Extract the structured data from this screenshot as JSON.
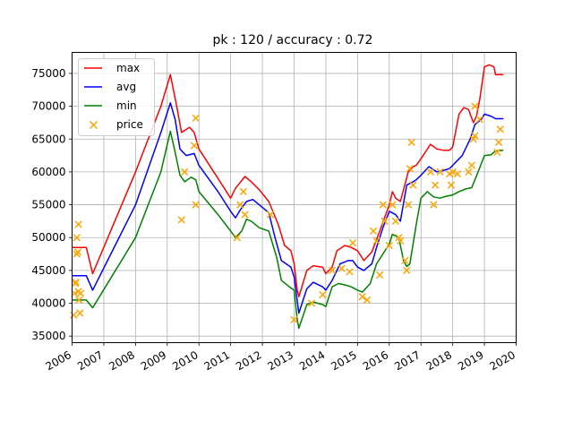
{
  "chart_data": {
    "type": "line",
    "title": "pk : 120 / accuracy : 0.72",
    "xlabel": "",
    "ylabel": "",
    "xlim": [
      2006,
      2020
    ],
    "ylim": [
      34000,
      78200
    ],
    "grid": true,
    "legend_position": "top-left",
    "x_ticks": [
      2006,
      2007,
      2008,
      2009,
      2010,
      2011,
      2012,
      2013,
      2014,
      2015,
      2016,
      2017,
      2018,
      2019,
      2020
    ],
    "x_tick_labels": [
      "2006",
      "2007",
      "2008",
      "2009",
      "2010",
      "2011",
      "2012",
      "2013",
      "2014",
      "2015",
      "2016",
      "2017",
      "2018",
      "2019",
      "2020"
    ],
    "y_ticks": [
      35000,
      40000,
      45000,
      50000,
      55000,
      60000,
      65000,
      70000,
      75000
    ],
    "y_tick_labels": [
      "35000",
      "40000",
      "45000",
      "50000",
      "55000",
      "60000",
      "65000",
      "70000",
      "75000"
    ],
    "series": [
      {
        "name": "max",
        "color": "#ff0000",
        "kind": "line",
        "points": [
          [
            2006.0,
            48500
          ],
          [
            2006.45,
            48500
          ],
          [
            2006.65,
            44500
          ],
          [
            2008.0,
            60000
          ],
          [
            2008.8,
            70000
          ],
          [
            2009.1,
            74800
          ],
          [
            2009.3,
            70000
          ],
          [
            2009.45,
            66000
          ],
          [
            2009.7,
            66800
          ],
          [
            2009.85,
            66000
          ],
          [
            2010.0,
            63500
          ],
          [
            2010.6,
            59000
          ],
          [
            2011.0,
            56000
          ],
          [
            2011.15,
            57500
          ],
          [
            2011.45,
            59300
          ],
          [
            2011.65,
            58500
          ],
          [
            2011.9,
            57300
          ],
          [
            2012.2,
            55500
          ],
          [
            2012.5,
            52000
          ],
          [
            2012.7,
            48800
          ],
          [
            2012.9,
            48000
          ],
          [
            2013.0,
            46000
          ],
          [
            2013.1,
            42000
          ],
          [
            2013.15,
            41000
          ],
          [
            2013.4,
            45000
          ],
          [
            2013.6,
            45700
          ],
          [
            2013.9,
            45500
          ],
          [
            2014.0,
            44500
          ],
          [
            2014.2,
            45500
          ],
          [
            2014.35,
            48000
          ],
          [
            2014.6,
            48800
          ],
          [
            2014.8,
            48500
          ],
          [
            2015.0,
            48000
          ],
          [
            2015.2,
            46500
          ],
          [
            2015.45,
            47800
          ],
          [
            2015.7,
            51000
          ],
          [
            2016.0,
            55000
          ],
          [
            2016.1,
            57000
          ],
          [
            2016.2,
            56000
          ],
          [
            2016.35,
            55500
          ],
          [
            2016.6,
            60000
          ],
          [
            2016.75,
            60800
          ],
          [
            2016.85,
            61000
          ],
          [
            2017.0,
            62000
          ],
          [
            2017.3,
            64200
          ],
          [
            2017.5,
            63500
          ],
          [
            2017.7,
            63300
          ],
          [
            2017.9,
            63300
          ],
          [
            2018.0,
            63800
          ],
          [
            2018.2,
            68800
          ],
          [
            2018.35,
            69800
          ],
          [
            2018.5,
            69500
          ],
          [
            2018.65,
            67500
          ],
          [
            2018.75,
            68500
          ],
          [
            2018.85,
            71000
          ],
          [
            2019.0,
            76000
          ],
          [
            2019.15,
            76300
          ],
          [
            2019.3,
            76000
          ],
          [
            2019.35,
            74800
          ],
          [
            2019.6,
            74800
          ]
        ]
      },
      {
        "name": "avg",
        "color": "#0000ff",
        "kind": "line",
        "points": [
          [
            2006.0,
            44200
          ],
          [
            2006.45,
            44200
          ],
          [
            2006.65,
            42000
          ],
          [
            2008.0,
            55000
          ],
          [
            2008.8,
            66000
          ],
          [
            2009.1,
            70500
          ],
          [
            2009.25,
            68000
          ],
          [
            2009.4,
            63500
          ],
          [
            2009.6,
            62500
          ],
          [
            2009.85,
            62800
          ],
          [
            2010.0,
            61000
          ],
          [
            2010.6,
            57000
          ],
          [
            2011.0,
            54000
          ],
          [
            2011.15,
            53000
          ],
          [
            2011.3,
            54200
          ],
          [
            2011.5,
            55500
          ],
          [
            2011.7,
            55800
          ],
          [
            2011.9,
            55000
          ],
          [
            2012.2,
            53800
          ],
          [
            2012.4,
            50000
          ],
          [
            2012.6,
            46500
          ],
          [
            2012.9,
            45500
          ],
          [
            2013.0,
            44000
          ],
          [
            2013.15,
            38500
          ],
          [
            2013.4,
            42200
          ],
          [
            2013.6,
            43200
          ],
          [
            2013.9,
            42500
          ],
          [
            2014.0,
            42000
          ],
          [
            2014.2,
            43500
          ],
          [
            2014.45,
            46000
          ],
          [
            2014.7,
            46500
          ],
          [
            2014.85,
            46500
          ],
          [
            2015.0,
            45500
          ],
          [
            2015.2,
            45000
          ],
          [
            2015.45,
            46000
          ],
          [
            2015.6,
            48500
          ],
          [
            2015.8,
            51500
          ],
          [
            2016.0,
            54000
          ],
          [
            2016.2,
            53500
          ],
          [
            2016.35,
            52500
          ],
          [
            2016.55,
            58000
          ],
          [
            2016.75,
            58500
          ],
          [
            2016.85,
            58800
          ],
          [
            2017.0,
            59500
          ],
          [
            2017.25,
            60800
          ],
          [
            2017.5,
            60000
          ],
          [
            2017.7,
            60200
          ],
          [
            2017.9,
            60500
          ],
          [
            2018.0,
            61000
          ],
          [
            2018.3,
            62500
          ],
          [
            2018.55,
            65000
          ],
          [
            2018.7,
            67200
          ],
          [
            2018.9,
            68000
          ],
          [
            2019.0,
            68800
          ],
          [
            2019.2,
            68500
          ],
          [
            2019.35,
            68100
          ],
          [
            2019.6,
            68100
          ]
        ]
      },
      {
        "name": "min",
        "color": "#008000",
        "kind": "line",
        "points": [
          [
            2006.0,
            40500
          ],
          [
            2006.45,
            40500
          ],
          [
            2006.65,
            39300
          ],
          [
            2008.0,
            50000
          ],
          [
            2008.8,
            60000
          ],
          [
            2009.1,
            66200
          ],
          [
            2009.25,
            63000
          ],
          [
            2009.4,
            59500
          ],
          [
            2009.55,
            58500
          ],
          [
            2009.75,
            59200
          ],
          [
            2009.9,
            58800
          ],
          [
            2010.0,
            57000
          ],
          [
            2010.6,
            53500
          ],
          [
            2011.0,
            51000
          ],
          [
            2011.15,
            50000
          ],
          [
            2011.35,
            51000
          ],
          [
            2011.5,
            52800
          ],
          [
            2011.65,
            52500
          ],
          [
            2011.9,
            51500
          ],
          [
            2012.2,
            51000
          ],
          [
            2012.45,
            47000
          ],
          [
            2012.6,
            43500
          ],
          [
            2012.85,
            42500
          ],
          [
            2013.0,
            42000
          ],
          [
            2013.1,
            37500
          ],
          [
            2013.15,
            36200
          ],
          [
            2013.4,
            39800
          ],
          [
            2013.6,
            40200
          ],
          [
            2013.9,
            39800
          ],
          [
            2014.0,
            39500
          ],
          [
            2014.2,
            42500
          ],
          [
            2014.4,
            43000
          ],
          [
            2014.6,
            42800
          ],
          [
            2014.8,
            42500
          ],
          [
            2015.0,
            42000
          ],
          [
            2015.15,
            41700
          ],
          [
            2015.4,
            43000
          ],
          [
            2015.6,
            46000
          ],
          [
            2015.8,
            47500
          ],
          [
            2016.0,
            49000
          ],
          [
            2016.1,
            50500
          ],
          [
            2016.3,
            50000
          ],
          [
            2016.45,
            46500
          ],
          [
            2016.55,
            45600
          ],
          [
            2016.65,
            46000
          ],
          [
            2016.85,
            52000
          ],
          [
            2017.0,
            56000
          ],
          [
            2017.2,
            57000
          ],
          [
            2017.4,
            56200
          ],
          [
            2017.6,
            56000
          ],
          [
            2017.8,
            56300
          ],
          [
            2018.0,
            56500
          ],
          [
            2018.2,
            57000
          ],
          [
            2018.4,
            57400
          ],
          [
            2018.6,
            57600
          ],
          [
            2018.8,
            60000
          ],
          [
            2019.0,
            62500
          ],
          [
            2019.2,
            62600
          ],
          [
            2019.35,
            63200
          ],
          [
            2019.6,
            63300
          ]
        ]
      },
      {
        "name": "price",
        "color": "#ffa500",
        "kind": "scatter",
        "marker": "x",
        "points": [
          [
            2006.05,
            38200
          ],
          [
            2006.08,
            41500
          ],
          [
            2006.1,
            43000
          ],
          [
            2006.12,
            43200
          ],
          [
            2006.15,
            47500
          ],
          [
            2006.18,
            47800
          ],
          [
            2006.2,
            41800
          ],
          [
            2006.22,
            40500
          ],
          [
            2006.25,
            38500
          ],
          [
            2006.27,
            41500
          ],
          [
            2006.15,
            50000
          ],
          [
            2006.2,
            52000
          ],
          [
            2009.45,
            52700
          ],
          [
            2009.55,
            60000
          ],
          [
            2009.85,
            64000
          ],
          [
            2009.9,
            68200
          ],
          [
            2009.9,
            55000
          ],
          [
            2011.2,
            50000
          ],
          [
            2011.3,
            55000
          ],
          [
            2011.4,
            57000
          ],
          [
            2011.45,
            53500
          ],
          [
            2012.25,
            53500
          ],
          [
            2013.0,
            37500
          ],
          [
            2013.55,
            40000
          ],
          [
            2013.9,
            41300
          ],
          [
            2014.2,
            45000
          ],
          [
            2014.5,
            45300
          ],
          [
            2014.75,
            44800
          ],
          [
            2014.85,
            49200
          ],
          [
            2015.15,
            41000
          ],
          [
            2015.3,
            40500
          ],
          [
            2015.5,
            51000
          ],
          [
            2015.6,
            49500
          ],
          [
            2015.7,
            44300
          ],
          [
            2015.8,
            55000
          ],
          [
            2015.85,
            52500
          ],
          [
            2016.0,
            48800
          ],
          [
            2016.1,
            55000
          ],
          [
            2016.2,
            52500
          ],
          [
            2016.3,
            50000
          ],
          [
            2016.35,
            49500
          ],
          [
            2016.5,
            46500
          ],
          [
            2016.55,
            45000
          ],
          [
            2016.6,
            55000
          ],
          [
            2016.65,
            60500
          ],
          [
            2016.7,
            64500
          ],
          [
            2016.75,
            58000
          ],
          [
            2017.3,
            60000
          ],
          [
            2017.4,
            55000
          ],
          [
            2017.45,
            58000
          ],
          [
            2017.6,
            60000
          ],
          [
            2017.9,
            59700
          ],
          [
            2017.95,
            58000
          ],
          [
            2018.0,
            60000
          ],
          [
            2018.15,
            59700
          ],
          [
            2018.5,
            60000
          ],
          [
            2018.6,
            61000
          ],
          [
            2018.65,
            65000
          ],
          [
            2018.7,
            65500
          ],
          [
            2018.7,
            70000
          ],
          [
            2018.85,
            68000
          ],
          [
            2019.4,
            63000
          ],
          [
            2019.45,
            64500
          ],
          [
            2019.5,
            66500
          ]
        ]
      }
    ]
  }
}
